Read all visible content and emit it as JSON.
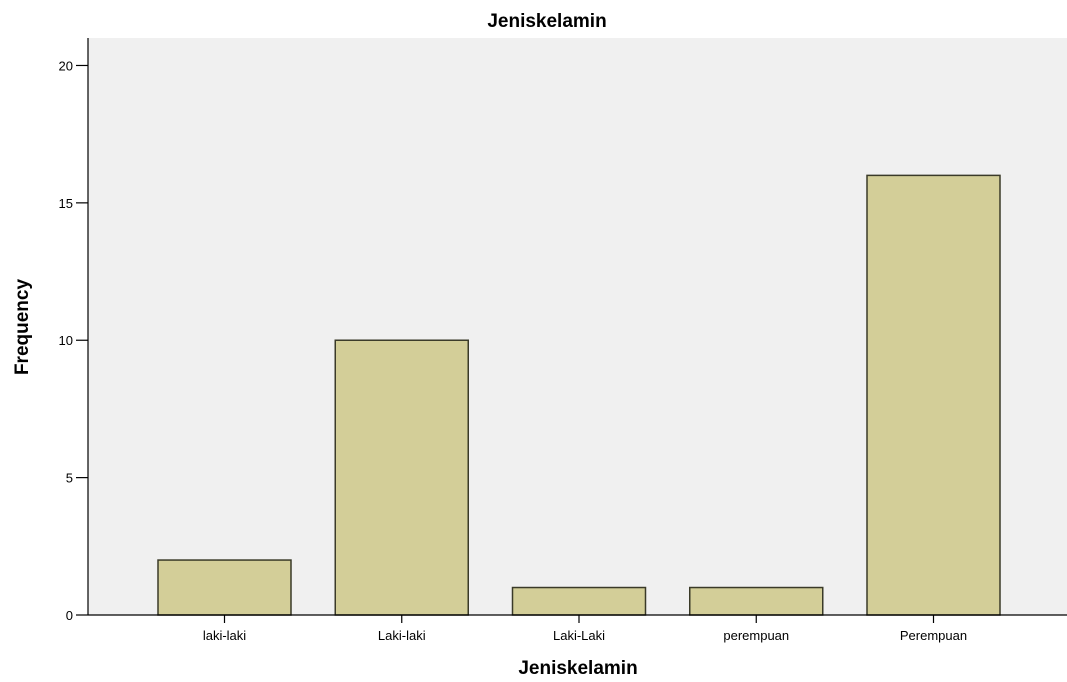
{
  "chart_data": {
    "type": "bar",
    "title": "Jeniskelamin",
    "xlabel": "Jeniskelamin",
    "ylabel": "Frequency",
    "categories": [
      "laki-laki",
      "Laki-laki",
      "Laki-Laki",
      "perempuan",
      "Perempuan"
    ],
    "values": [
      2,
      10,
      1,
      1,
      16
    ],
    "ylim": [
      0,
      21
    ],
    "yticks": [
      0,
      5,
      10,
      15,
      20
    ],
    "grid": false,
    "legend": "none"
  },
  "colors": {
    "plot_background": "#f0f0f0",
    "bar_fill": "#d3ce98",
    "bar_stroke": "#3a3a28",
    "axis": "#000000"
  }
}
